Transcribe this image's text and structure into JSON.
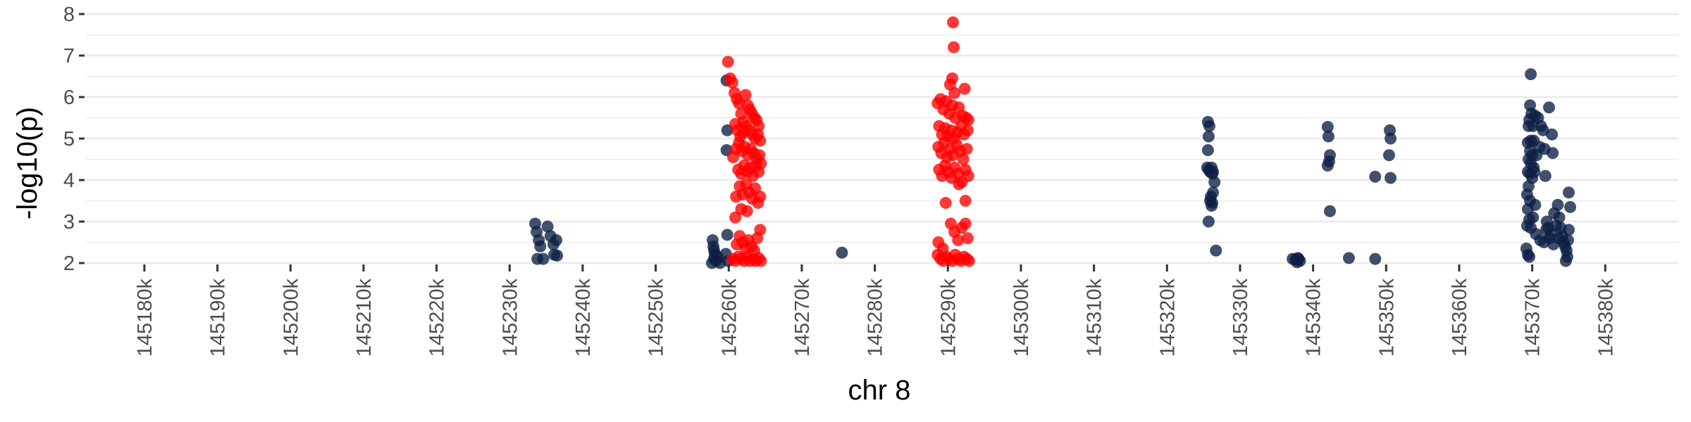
{
  "chart_data": {
    "type": "scatter",
    "xlabel": "chr 8",
    "ylabel": "-log10(p)",
    "xlim": [
      145172000,
      145390000
    ],
    "ylim": [
      2,
      8
    ],
    "y_ticks": [
      2,
      3,
      4,
      5,
      6,
      7,
      8
    ],
    "x_ticks": [
      145180000,
      145190000,
      145200000,
      145210000,
      145220000,
      145230000,
      145240000,
      145250000,
      145260000,
      145270000,
      145280000,
      145290000,
      145300000,
      145310000,
      145320000,
      145330000,
      145340000,
      145350000,
      145360000,
      145370000,
      145380000
    ],
    "x_tick_labels": [
      "145180k",
      "145190k",
      "145200k",
      "145210k",
      "145220k",
      "145230k",
      "145240k",
      "145250k",
      "145260k",
      "145270k",
      "145280k",
      "145290k",
      "145300k",
      "145310k",
      "145320k",
      "145330k",
      "145340k",
      "145350k",
      "145360k",
      "145370k",
      "145380k"
    ],
    "grid": true,
    "colors": {
      "background": "#ffffff",
      "grid": "#ebebeb",
      "significant": "#ff0000",
      "other": "#0d1f45"
    },
    "series": [
      {
        "color": "#0d1f45",
        "points": [
          [
            145233500,
            2.95
          ],
          [
            145233700,
            2.75
          ],
          [
            145234000,
            2.55
          ],
          [
            145234200,
            2.4
          ],
          [
            145233800,
            2.1
          ],
          [
            145234600,
            2.1
          ],
          [
            145235200,
            2.88
          ],
          [
            145235600,
            2.65
          ],
          [
            145236000,
            2.45
          ],
          [
            145236400,
            2.55
          ],
          [
            145236100,
            2.2
          ],
          [
            145236500,
            2.18
          ],
          [
            145257800,
            2.55
          ],
          [
            145257900,
            2.4
          ],
          [
            145258000,
            2.3
          ],
          [
            145258100,
            2.2
          ],
          [
            145258000,
            2.1
          ],
          [
            145258300,
            2.05
          ],
          [
            145257700,
            2.0
          ],
          [
            145258500,
            2.15
          ],
          [
            145258800,
            2.0
          ],
          [
            145259800,
            2.68
          ],
          [
            145259600,
            2.22
          ],
          [
            145259900,
            2.05
          ],
          [
            145259700,
            6.4
          ],
          [
            145259800,
            5.2
          ],
          [
            145259700,
            4.72
          ],
          [
            145275500,
            2.25
          ],
          [
            145325600,
            5.4
          ],
          [
            145325800,
            5.3
          ],
          [
            145325700,
            5.05
          ],
          [
            145325600,
            4.72
          ],
          [
            145325500,
            4.3
          ],
          [
            145325700,
            4.25
          ],
          [
            145325900,
            4.2
          ],
          [
            145326100,
            4.3
          ],
          [
            145326300,
            4.2
          ],
          [
            145326200,
            4.15
          ],
          [
            145326500,
            3.95
          ],
          [
            145326300,
            3.7
          ],
          [
            145326000,
            3.6
          ],
          [
            145325900,
            3.5
          ],
          [
            145326200,
            3.45
          ],
          [
            145326100,
            3.38
          ],
          [
            145325700,
            3.0
          ],
          [
            145326700,
            2.3
          ],
          [
            145337200,
            2.1
          ],
          [
            145337600,
            2.08
          ],
          [
            145337900,
            2.12
          ],
          [
            145338200,
            2.05
          ],
          [
            145338000,
            2.1
          ],
          [
            145337800,
            2.02
          ],
          [
            145342000,
            5.28
          ],
          [
            145342100,
            5.05
          ],
          [
            145342300,
            4.6
          ],
          [
            145342200,
            4.45
          ],
          [
            145342000,
            4.35
          ],
          [
            145342300,
            3.25
          ],
          [
            145344900,
            2.12
          ],
          [
            145348500,
            2.1
          ],
          [
            145348500,
            4.08
          ],
          [
            145350500,
            5.2
          ],
          [
            145350600,
            5.0
          ],
          [
            145350400,
            4.6
          ],
          [
            145350600,
            4.05
          ],
          [
            145369800,
            6.55
          ],
          [
            145369700,
            5.8
          ],
          [
            145369900,
            5.6
          ],
          [
            145369600,
            5.45
          ],
          [
            145370100,
            5.3
          ],
          [
            145369500,
            5.3
          ],
          [
            145370400,
            5.55
          ],
          [
            145370800,
            5.5
          ],
          [
            145371200,
            5.3
          ],
          [
            145371500,
            5.2
          ],
          [
            145372300,
            5.75
          ],
          [
            145372700,
            5.1
          ],
          [
            145369400,
            4.9
          ],
          [
            145369800,
            4.95
          ],
          [
            145370200,
            4.95
          ],
          [
            145369700,
            4.7
          ],
          [
            145370000,
            4.6
          ],
          [
            145369500,
            4.5
          ],
          [
            145369800,
            4.4
          ],
          [
            145370200,
            4.3
          ],
          [
            145369400,
            4.2
          ],
          [
            145369700,
            4.15
          ],
          [
            145370000,
            4.05
          ],
          [
            145370300,
            4.2
          ],
          [
            145370600,
            4.6
          ],
          [
            145371000,
            4.8
          ],
          [
            145371700,
            4.75
          ],
          [
            145372800,
            4.65
          ],
          [
            145369500,
            3.85
          ],
          [
            145369300,
            3.65
          ],
          [
            145369700,
            3.5
          ],
          [
            145369400,
            3.3
          ],
          [
            145369600,
            3.05
          ],
          [
            145369300,
            2.9
          ],
          [
            145369800,
            2.85
          ],
          [
            145370100,
            3.1
          ],
          [
            145370400,
            3.4
          ],
          [
            145370500,
            2.7
          ],
          [
            145371100,
            2.55
          ],
          [
            145371600,
            2.5
          ],
          [
            145371900,
            2.8
          ],
          [
            145372000,
            3.0
          ],
          [
            145372200,
            2.85
          ],
          [
            145372400,
            2.6
          ],
          [
            145372600,
            2.7
          ],
          [
            145371800,
            4.1
          ],
          [
            145373000,
            3.2
          ],
          [
            145373300,
            2.9
          ],
          [
            145373500,
            3.4
          ],
          [
            145373700,
            3.1
          ],
          [
            145373900,
            2.85
          ],
          [
            145374100,
            2.65
          ],
          [
            145374300,
            2.5
          ],
          [
            145374500,
            2.4
          ],
          [
            145374700,
            2.3
          ],
          [
            145374800,
            2.15
          ],
          [
            145374900,
            2.55
          ],
          [
            145375000,
            2.8
          ],
          [
            145375200,
            3.35
          ],
          [
            145375000,
            3.7
          ],
          [
            145374600,
            2.05
          ],
          [
            145369200,
            2.35
          ],
          [
            145369400,
            2.2
          ],
          [
            145369600,
            2.15
          ],
          [
            145373600,
            2.6
          ],
          [
            145372900,
            2.45
          ]
        ]
      },
      {
        "color": "#ff0000",
        "points": [
          [
            145259900,
            6.85
          ],
          [
            145260200,
            6.45
          ],
          [
            145260500,
            6.35
          ],
          [
            145260800,
            6.1
          ],
          [
            145261100,
            5.95
          ],
          [
            145261400,
            5.85
          ],
          [
            145261700,
            5.6
          ],
          [
            145262000,
            5.4
          ],
          [
            145262300,
            6.05
          ],
          [
            145262600,
            5.8
          ],
          [
            145262900,
            5.7
          ],
          [
            145263200,
            5.6
          ],
          [
            145263500,
            5.5
          ],
          [
            145263800,
            5.45
          ],
          [
            145264100,
            5.3
          ],
          [
            145260900,
            5.35
          ],
          [
            145261200,
            5.2
          ],
          [
            145261600,
            5.05
          ],
          [
            145262000,
            5.15
          ],
          [
            145262400,
            5.3
          ],
          [
            145262800,
            5.2
          ],
          [
            145263200,
            5.1
          ],
          [
            145263600,
            5.0
          ],
          [
            145264000,
            5.1
          ],
          [
            145264300,
            4.95
          ],
          [
            145260600,
            4.55
          ],
          [
            145261000,
            4.75
          ],
          [
            145261400,
            4.9
          ],
          [
            145261800,
            4.7
          ],
          [
            145262200,
            4.8
          ],
          [
            145262600,
            4.6
          ],
          [
            145263000,
            4.75
          ],
          [
            145263400,
            4.65
          ],
          [
            145263800,
            4.5
          ],
          [
            145264200,
            4.6
          ],
          [
            145261300,
            4.25
          ],
          [
            145261700,
            4.15
          ],
          [
            145262100,
            4.35
          ],
          [
            145262500,
            4.2
          ],
          [
            145262900,
            4.3
          ],
          [
            145263300,
            4.1
          ],
          [
            145263700,
            4.35
          ],
          [
            145264100,
            4.2
          ],
          [
            145264400,
            4.4
          ],
          [
            145261000,
            3.6
          ],
          [
            145261500,
            3.85
          ],
          [
            145261900,
            3.65
          ],
          [
            145262400,
            3.9
          ],
          [
            145262800,
            3.7
          ],
          [
            145263200,
            3.55
          ],
          [
            145263600,
            3.8
          ],
          [
            145264000,
            3.45
          ],
          [
            145264300,
            3.6
          ],
          [
            145260900,
            3.1
          ],
          [
            145261700,
            3.3
          ],
          [
            145262500,
            3.25
          ],
          [
            145261100,
            2.45
          ],
          [
            145261500,
            2.65
          ],
          [
            145261900,
            2.5
          ],
          [
            145262300,
            2.35
          ],
          [
            145262700,
            2.55
          ],
          [
            145263100,
            2.4
          ],
          [
            145263500,
            2.3
          ],
          [
            145263900,
            2.6
          ],
          [
            145264300,
            2.8
          ],
          [
            145260500,
            2.1
          ],
          [
            145260900,
            2.05
          ],
          [
            145261300,
            2.15
          ],
          [
            145261700,
            2.1
          ],
          [
            145262100,
            2.05
          ],
          [
            145262500,
            2.15
          ],
          [
            145262900,
            2.05
          ],
          [
            145263300,
            2.1
          ],
          [
            145263700,
            2.05
          ],
          [
            145264100,
            2.12
          ],
          [
            145264400,
            2.05
          ],
          [
            145290700,
            7.8
          ],
          [
            145290800,
            7.2
          ],
          [
            145290600,
            6.45
          ],
          [
            145290300,
            6.3
          ],
          [
            145290900,
            6.1
          ],
          [
            145292300,
            6.2
          ],
          [
            145288600,
            5.85
          ],
          [
            145289000,
            5.95
          ],
          [
            145289400,
            5.7
          ],
          [
            145289800,
            5.9
          ],
          [
            145290200,
            5.6
          ],
          [
            145290600,
            5.8
          ],
          [
            145291000,
            5.5
          ],
          [
            145291500,
            5.75
          ],
          [
            145292000,
            5.55
          ],
          [
            145292500,
            5.5
          ],
          [
            145292800,
            5.45
          ],
          [
            145288800,
            5.3
          ],
          [
            145289200,
            5.1
          ],
          [
            145289600,
            5.25
          ],
          [
            145290000,
            5.05
          ],
          [
            145290400,
            5.2
          ],
          [
            145290800,
            5.0
          ],
          [
            145291300,
            5.15
          ],
          [
            145291800,
            5.3
          ],
          [
            145292200,
            5.1
          ],
          [
            145292700,
            5.2
          ],
          [
            145288700,
            4.8
          ],
          [
            145289100,
            4.65
          ],
          [
            145289500,
            4.9
          ],
          [
            145289900,
            4.55
          ],
          [
            145290300,
            4.75
          ],
          [
            145290700,
            4.6
          ],
          [
            145291200,
            4.85
          ],
          [
            145291700,
            4.7
          ],
          [
            145292100,
            4.5
          ],
          [
            145292600,
            4.75
          ],
          [
            145288800,
            4.25
          ],
          [
            145289200,
            4.1
          ],
          [
            145289600,
            4.35
          ],
          [
            145290000,
            4.2
          ],
          [
            145290500,
            4.05
          ],
          [
            145290900,
            4.3
          ],
          [
            145291400,
            4.15
          ],
          [
            145291900,
            3.95
          ],
          [
            145292400,
            4.25
          ],
          [
            145292800,
            4.1
          ],
          [
            145289700,
            3.45
          ],
          [
            145291500,
            3.9
          ],
          [
            145292400,
            3.5
          ],
          [
            145288700,
            2.5
          ],
          [
            145289300,
            2.35
          ],
          [
            145290400,
            2.95
          ],
          [
            145290900,
            2.75
          ],
          [
            145291400,
            2.55
          ],
          [
            145291900,
            2.85
          ],
          [
            145292400,
            2.95
          ],
          [
            145292700,
            2.6
          ],
          [
            145288600,
            2.2
          ],
          [
            145289000,
            2.1
          ],
          [
            145289400,
            2.05
          ],
          [
            145289800,
            2.15
          ],
          [
            145290200,
            2.1
          ],
          [
            145290600,
            2.05
          ],
          [
            145291000,
            2.2
          ],
          [
            145291400,
            2.1
          ],
          [
            145291800,
            2.05
          ],
          [
            145292200,
            2.15
          ],
          [
            145292600,
            2.1
          ],
          [
            145292900,
            2.05
          ]
        ]
      }
    ]
  }
}
